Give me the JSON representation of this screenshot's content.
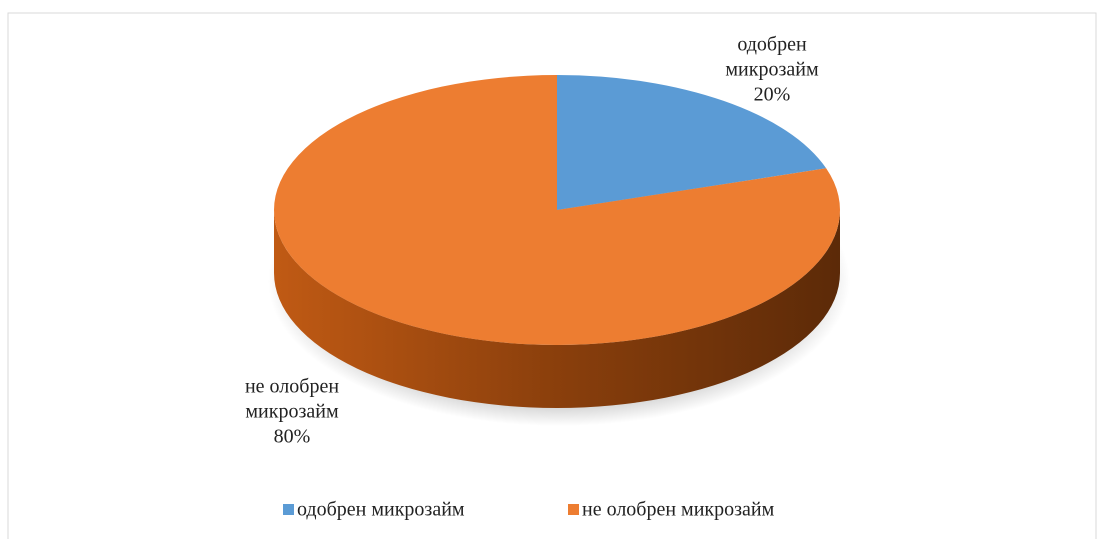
{
  "chart_data": {
    "type": "pie",
    "categories": [
      "одобрен микрозайм",
      "не олобрен микрозайм"
    ],
    "values": [
      20,
      80
    ],
    "value_labels": [
      "20%",
      "80%"
    ],
    "colors": [
      "#5b9bd5",
      "#ed7d31"
    ],
    "legend": "bottom"
  }
}
